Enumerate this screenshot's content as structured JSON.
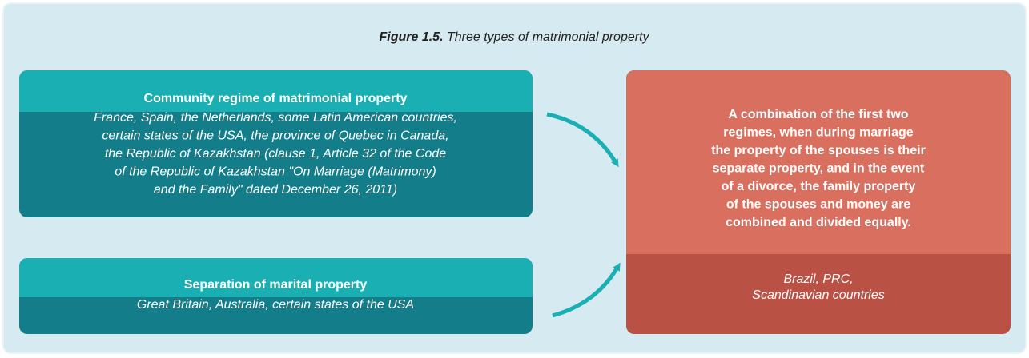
{
  "figure": {
    "label": "Figure 1.5.",
    "title": "Three types of matrimonial property"
  },
  "boxes": [
    {
      "title": "Community regime of matrimonial property",
      "lines": [
        "France, Spain, the Netherlands, some Latin American countries,",
        "certain states of the USA, the province of Quebec in Canada,",
        "the Republic of Kazakhstan (clause 1, Article 32 of the Code",
        "of the Republic of Kazakhstan \"On Marriage (Matrimony)",
        "and the Family\" dated December 26, 2011)"
      ]
    },
    {
      "title": "Separation of marital property",
      "lines": [
        "Great Britain, Australia, certain states of the USA"
      ]
    },
    {
      "title_lines": [
        "A combination of the first two",
        "regimes, when during marriage",
        "the property of the spouses is their",
        "separate property, and in the event",
        "of a divorce, the family property",
        "of the spouses and money are",
        "combined and divided equally."
      ],
      "lines": [
        "Brazil, PRC,",
        "Scandinavian countries"
      ]
    }
  ]
}
